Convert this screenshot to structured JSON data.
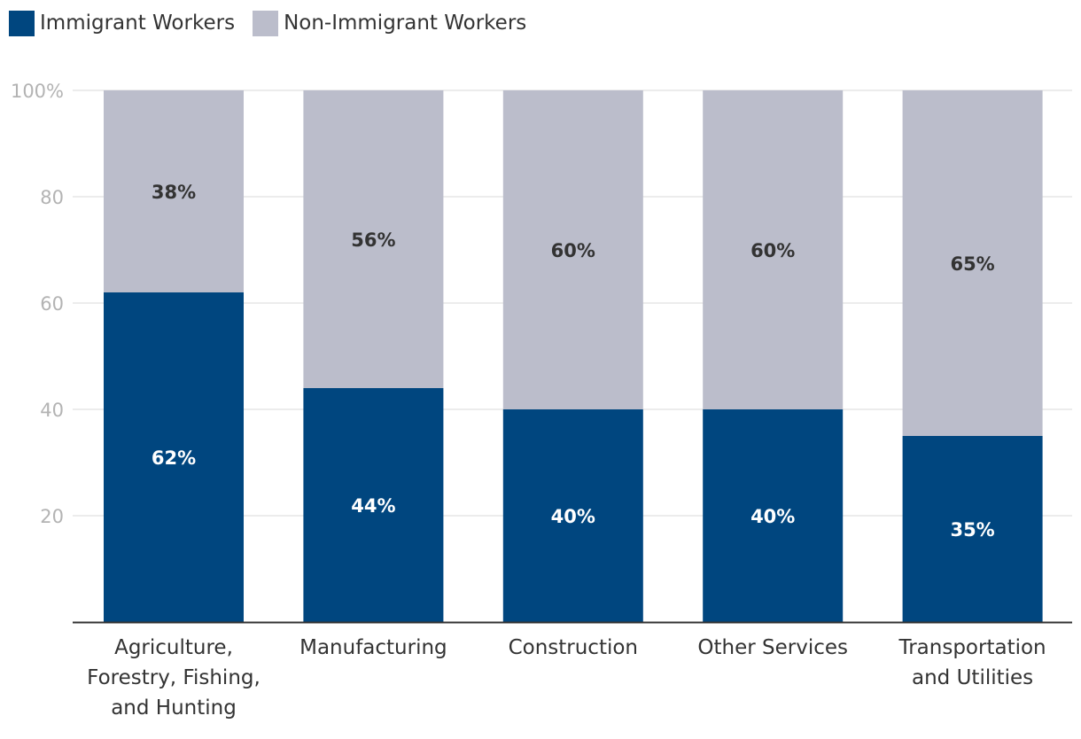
{
  "chart_data": {
    "type": "bar",
    "stacked": true,
    "categories": [
      [
        "Agriculture,",
        "Forestry, Fishing,",
        "and Hunting"
      ],
      [
        "Manufacturing"
      ],
      [
        "Construction"
      ],
      [
        "Other Services"
      ],
      [
        "Transportation",
        "and Utilities"
      ]
    ],
    "series": [
      {
        "name": "Immigrant Workers",
        "color": "#00467f",
        "values": [
          62,
          44,
          40,
          40,
          35
        ],
        "labels": [
          "62%",
          "44%",
          "40%",
          "40%",
          "35%"
        ]
      },
      {
        "name": "Non-Immigrant Workers",
        "color": "#bbbdcb",
        "values": [
          38,
          56,
          60,
          60,
          65
        ],
        "labels": [
          "38%",
          "56%",
          "60%",
          "60%",
          "65%"
        ]
      }
    ],
    "yticks": [
      {
        "value": 20,
        "label": "20"
      },
      {
        "value": 40,
        "label": "40"
      },
      {
        "value": 60,
        "label": "60"
      },
      {
        "value": 80,
        "label": "80"
      },
      {
        "value": 100,
        "label": "100%"
      }
    ],
    "ylim": [
      0,
      100
    ],
    "grid": true,
    "legend_position": "top-left"
  }
}
